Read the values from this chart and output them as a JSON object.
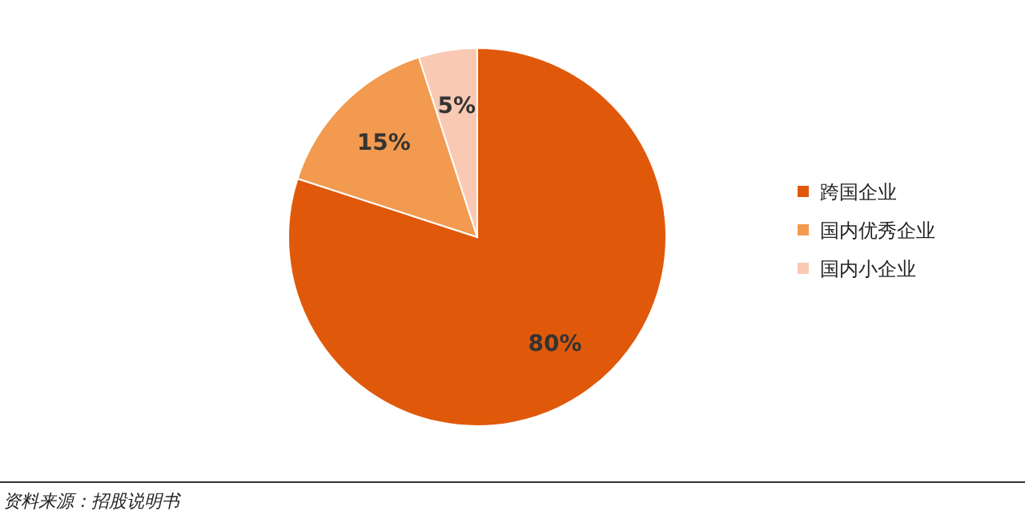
{
  "chart_data": {
    "type": "pie",
    "categories": [
      "跨国企业",
      "国内优秀企业",
      "国内小企业"
    ],
    "values": [
      80,
      15,
      5
    ],
    "colors": [
      "#e0590b",
      "#f29a4f",
      "#f9c9b3"
    ],
    "value_labels": [
      "80%",
      "15%",
      "5%"
    ],
    "legend": "right",
    "annotations": [
      "资料来源：招股说明书"
    ]
  }
}
